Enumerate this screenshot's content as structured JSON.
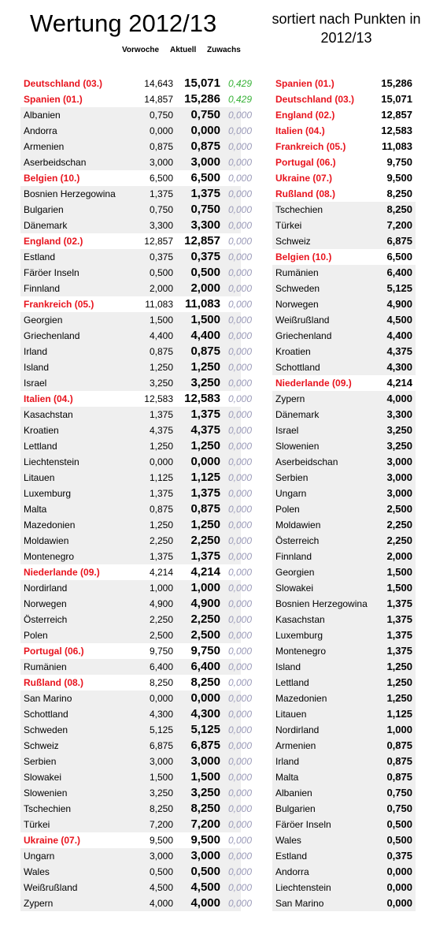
{
  "title": "Wertung 2012/13",
  "subtitle": "sortiert nach Punkten in 2012/13",
  "headers": {
    "prev": "Vorwoche",
    "curr": "Aktuell",
    "delta": "Zuwachs"
  },
  "colors": {
    "highlight": "#e8141e",
    "positive": "#38b238",
    "zero": "#9a9ab8",
    "shade": "#efefef"
  },
  "left": [
    {
      "country": "Deutschland (03.)",
      "prev": "14,643",
      "curr": "15,071",
      "delta": "0,429",
      "hl": true,
      "pos": true
    },
    {
      "country": "Spanien (01.)",
      "prev": "14,857",
      "curr": "15,286",
      "delta": "0,429",
      "hl": true,
      "pos": true
    },
    {
      "country": "Albanien",
      "prev": "0,750",
      "curr": "0,750",
      "delta": "0,000"
    },
    {
      "country": "Andorra",
      "prev": "0,000",
      "curr": "0,000",
      "delta": "0,000"
    },
    {
      "country": "Armenien",
      "prev": "0,875",
      "curr": "0,875",
      "delta": "0,000"
    },
    {
      "country": "Aserbeidschan",
      "prev": "3,000",
      "curr": "3,000",
      "delta": "0,000"
    },
    {
      "country": "Belgien (10.)",
      "prev": "6,500",
      "curr": "6,500",
      "delta": "0,000",
      "hl": true
    },
    {
      "country": "Bosnien Herzegowina",
      "prev": "1,375",
      "curr": "1,375",
      "delta": "0,000"
    },
    {
      "country": "Bulgarien",
      "prev": "0,750",
      "curr": "0,750",
      "delta": "0,000"
    },
    {
      "country": "Dänemark",
      "prev": "3,300",
      "curr": "3,300",
      "delta": "0,000"
    },
    {
      "country": "England (02.)",
      "prev": "12,857",
      "curr": "12,857",
      "delta": "0,000",
      "hl": true
    },
    {
      "country": "Estland",
      "prev": "0,375",
      "curr": "0,375",
      "delta": "0,000"
    },
    {
      "country": "Färöer Inseln",
      "prev": "0,500",
      "curr": "0,500",
      "delta": "0,000"
    },
    {
      "country": "Finnland",
      "prev": "2,000",
      "curr": "2,000",
      "delta": "0,000"
    },
    {
      "country": "Frankreich (05.)",
      "prev": "11,083",
      "curr": "11,083",
      "delta": "0,000",
      "hl": true
    },
    {
      "country": "Georgien",
      "prev": "1,500",
      "curr": "1,500",
      "delta": "0,000"
    },
    {
      "country": "Griechenland",
      "prev": "4,400",
      "curr": "4,400",
      "delta": "0,000"
    },
    {
      "country": "Irland",
      "prev": "0,875",
      "curr": "0,875",
      "delta": "0,000"
    },
    {
      "country": "Island",
      "prev": "1,250",
      "curr": "1,250",
      "delta": "0,000"
    },
    {
      "country": "Israel",
      "prev": "3,250",
      "curr": "3,250",
      "delta": "0,000"
    },
    {
      "country": "Italien (04.)",
      "prev": "12,583",
      "curr": "12,583",
      "delta": "0,000",
      "hl": true
    },
    {
      "country": "Kasachstan",
      "prev": "1,375",
      "curr": "1,375",
      "delta": "0,000"
    },
    {
      "country": "Kroatien",
      "prev": "4,375",
      "curr": "4,375",
      "delta": "0,000"
    },
    {
      "country": "Lettland",
      "prev": "1,250",
      "curr": "1,250",
      "delta": "0,000"
    },
    {
      "country": "Liechtenstein",
      "prev": "0,000",
      "curr": "0,000",
      "delta": "0,000"
    },
    {
      "country": "Litauen",
      "prev": "1,125",
      "curr": "1,125",
      "delta": "0,000"
    },
    {
      "country": "Luxemburg",
      "prev": "1,375",
      "curr": "1,375",
      "delta": "0,000"
    },
    {
      "country": "Malta",
      "prev": "0,875",
      "curr": "0,875",
      "delta": "0,000"
    },
    {
      "country": "Mazedonien",
      "prev": "1,250",
      "curr": "1,250",
      "delta": "0,000"
    },
    {
      "country": "Moldawien",
      "prev": "2,250",
      "curr": "2,250",
      "delta": "0,000"
    },
    {
      "country": "Montenegro",
      "prev": "1,375",
      "curr": "1,375",
      "delta": "0,000"
    },
    {
      "country": "Niederlande (09.)",
      "prev": "4,214",
      "curr": "4,214",
      "delta": "0,000",
      "hl": true
    },
    {
      "country": "Nordirland",
      "prev": "1,000",
      "curr": "1,000",
      "delta": "0,000"
    },
    {
      "country": "Norwegen",
      "prev": "4,900",
      "curr": "4,900",
      "delta": "0,000"
    },
    {
      "country": "Österreich",
      "prev": "2,250",
      "curr": "2,250",
      "delta": "0,000"
    },
    {
      "country": "Polen",
      "prev": "2,500",
      "curr": "2,500",
      "delta": "0,000"
    },
    {
      "country": "Portugal (06.)",
      "prev": "9,750",
      "curr": "9,750",
      "delta": "0,000",
      "hl": true
    },
    {
      "country": "Rumänien",
      "prev": "6,400",
      "curr": "6,400",
      "delta": "0,000"
    },
    {
      "country": "Rußland (08.)",
      "prev": "8,250",
      "curr": "8,250",
      "delta": "0,000",
      "hl": true
    },
    {
      "country": "San Marino",
      "prev": "0,000",
      "curr": "0,000",
      "delta": "0,000"
    },
    {
      "country": "Schottland",
      "prev": "4,300",
      "curr": "4,300",
      "delta": "0,000"
    },
    {
      "country": "Schweden",
      "prev": "5,125",
      "curr": "5,125",
      "delta": "0,000"
    },
    {
      "country": "Schweiz",
      "prev": "6,875",
      "curr": "6,875",
      "delta": "0,000"
    },
    {
      "country": "Serbien",
      "prev": "3,000",
      "curr": "3,000",
      "delta": "0,000"
    },
    {
      "country": "Slowakei",
      "prev": "1,500",
      "curr": "1,500",
      "delta": "0,000"
    },
    {
      "country": "Slowenien",
      "prev": "3,250",
      "curr": "3,250",
      "delta": "0,000"
    },
    {
      "country": "Tschechien",
      "prev": "8,250",
      "curr": "8,250",
      "delta": "0,000"
    },
    {
      "country": "Türkei",
      "prev": "7,200",
      "curr": "7,200",
      "delta": "0,000"
    },
    {
      "country": "Ukraine (07.)",
      "prev": "9,500",
      "curr": "9,500",
      "delta": "0,000",
      "hl": true
    },
    {
      "country": "Ungarn",
      "prev": "3,000",
      "curr": "3,000",
      "delta": "0,000"
    },
    {
      "country": "Wales",
      "prev": "0,500",
      "curr": "0,500",
      "delta": "0,000"
    },
    {
      "country": "Weißrußland",
      "prev": "4,500",
      "curr": "4,500",
      "delta": "0,000"
    },
    {
      "country": "Zypern",
      "prev": "4,000",
      "curr": "4,000",
      "delta": "0,000"
    }
  ],
  "right": [
    {
      "country": "Spanien (01.)",
      "pts": "15,286",
      "hl": true
    },
    {
      "country": "Deutschland (03.)",
      "pts": "15,071",
      "hl": true
    },
    {
      "country": "England (02.)",
      "pts": "12,857",
      "hl": true
    },
    {
      "country": "Italien (04.)",
      "pts": "12,583",
      "hl": true
    },
    {
      "country": "Frankreich (05.)",
      "pts": "11,083",
      "hl": true
    },
    {
      "country": "Portugal (06.)",
      "pts": "9,750",
      "hl": true
    },
    {
      "country": "Ukraine (07.)",
      "pts": "9,500",
      "hl": true
    },
    {
      "country": "Rußland (08.)",
      "pts": "8,250",
      "hl": true
    },
    {
      "country": "Tschechien",
      "pts": "8,250"
    },
    {
      "country": "Türkei",
      "pts": "7,200"
    },
    {
      "country": "Schweiz",
      "pts": "6,875"
    },
    {
      "country": "Belgien (10.)",
      "pts": "6,500",
      "hl": true
    },
    {
      "country": "Rumänien",
      "pts": "6,400"
    },
    {
      "country": "Schweden",
      "pts": "5,125"
    },
    {
      "country": "Norwegen",
      "pts": "4,900"
    },
    {
      "country": "Weißrußland",
      "pts": "4,500"
    },
    {
      "country": "Griechenland",
      "pts": "4,400"
    },
    {
      "country": "Kroatien",
      "pts": "4,375"
    },
    {
      "country": "Schottland",
      "pts": "4,300"
    },
    {
      "country": "Niederlande (09.)",
      "pts": "4,214",
      "hl": true
    },
    {
      "country": "Zypern",
      "pts": "4,000"
    },
    {
      "country": "Dänemark",
      "pts": "3,300"
    },
    {
      "country": "Israel",
      "pts": "3,250"
    },
    {
      "country": "Slowenien",
      "pts": "3,250"
    },
    {
      "country": "Aserbeidschan",
      "pts": "3,000"
    },
    {
      "country": "Serbien",
      "pts": "3,000"
    },
    {
      "country": "Ungarn",
      "pts": "3,000"
    },
    {
      "country": "Polen",
      "pts": "2,500"
    },
    {
      "country": "Moldawien",
      "pts": "2,250"
    },
    {
      "country": "Österreich",
      "pts": "2,250"
    },
    {
      "country": "Finnland",
      "pts": "2,000"
    },
    {
      "country": "Georgien",
      "pts": "1,500"
    },
    {
      "country": "Slowakei",
      "pts": "1,500"
    },
    {
      "country": "Bosnien Herzegowina",
      "pts": "1,375"
    },
    {
      "country": "Kasachstan",
      "pts": "1,375"
    },
    {
      "country": "Luxemburg",
      "pts": "1,375"
    },
    {
      "country": "Montenegro",
      "pts": "1,375"
    },
    {
      "country": "Island",
      "pts": "1,250"
    },
    {
      "country": "Lettland",
      "pts": "1,250"
    },
    {
      "country": "Mazedonien",
      "pts": "1,250"
    },
    {
      "country": "Litauen",
      "pts": "1,125"
    },
    {
      "country": "Nordirland",
      "pts": "1,000"
    },
    {
      "country": "Armenien",
      "pts": "0,875"
    },
    {
      "country": "Irland",
      "pts": "0,875"
    },
    {
      "country": "Malta",
      "pts": "0,875"
    },
    {
      "country": "Albanien",
      "pts": "0,750"
    },
    {
      "country": "Bulgarien",
      "pts": "0,750"
    },
    {
      "country": "Färöer Inseln",
      "pts": "0,500"
    },
    {
      "country": "Wales",
      "pts": "0,500"
    },
    {
      "country": "Estland",
      "pts": "0,375"
    },
    {
      "country": "Andorra",
      "pts": "0,000"
    },
    {
      "country": "Liechtenstein",
      "pts": "0,000"
    },
    {
      "country": "San Marino",
      "pts": "0,000"
    }
  ]
}
